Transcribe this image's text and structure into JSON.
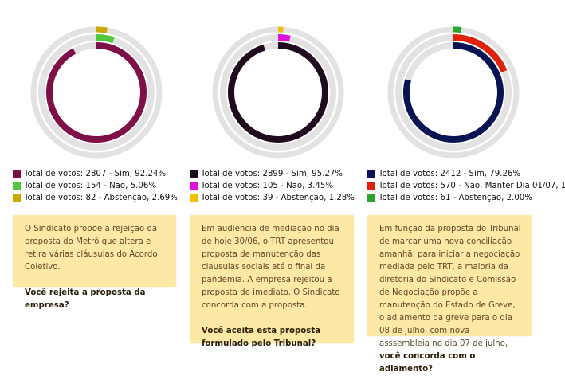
{
  "chart_data": [
    {
      "type": "radial-bar",
      "series": [
        {
          "label": "Total de votos: 2807 - Sim, 92.24%",
          "votes": 2807,
          "percent": 92.24,
          "color": "#7e1048"
        },
        {
          "label": "Total de votos: 154 - Não, 5.06%",
          "votes": 154,
          "percent": 5.06,
          "color": "#4ec93c"
        },
        {
          "label": "Total de votos: 82 - Abstenção, 2.69%",
          "votes": 82,
          "percent": 2.69,
          "color": "#c9a800"
        }
      ],
      "track_color": "#e2e2e2",
      "card": {
        "text": "O Sindicato propõe a rejeição da proposta do Metrô que altera e retira várias cláusulas do Acordo Coletivo.",
        "question": "Você rejeita a proposta da empresa?"
      }
    },
    {
      "type": "radial-bar",
      "series": [
        {
          "label": "Total de votos: 2899 - Sim, 95.27%",
          "votes": 2899,
          "percent": 95.27,
          "color": "#200a1e"
        },
        {
          "label": "Total de votos: 105 - Não, 3.45%",
          "votes": 105,
          "percent": 3.45,
          "color": "#e010df"
        },
        {
          "label": "Total de votos: 39 - Abstenção, 1.28%",
          "votes": 39,
          "percent": 1.28,
          "color": "#f0c000"
        }
      ],
      "track_color": "#e2e2e2",
      "card": {
        "text": "Em audiencia de mediação no dia de hoje 30/06, o TRT apresentou proposta de manutenção das clausulas sociais até o final da pandemia. A empresa rejeitou a proposta de imediato. O Sindicato concorda com a proposta.",
        "question": "Você aceita esta proposta formulado pelo Tribunal?"
      }
    },
    {
      "type": "radial-bar",
      "series": [
        {
          "label": "Total de votos: 2412 - Sim, 79.26%",
          "votes": 2412,
          "percent": 79.26,
          "color": "#0b1452"
        },
        {
          "label": "Total de votos: 570 - Não, Manter Dia 01/07, 18.73%",
          "votes": 570,
          "percent": 18.73,
          "color": "#e0220c"
        },
        {
          "label": "Total de votos: 61 - Abstenção, 2.00%",
          "votes": 61,
          "percent": 2.0,
          "color": "#2aa52a"
        }
      ],
      "track_color": "#e2e2e2",
      "card": {
        "text": "Em função da proposta do Tribunal de marcar uma nova conciliação amanhã, para iniciar a negociação mediada pelo TRT, a maioria da diretoria do Sindicato e Comissão de Negociação propõe a manutenção do Estado de Greve, o adiamento da greve para o dia 08 de julho, com nova asssembleia no dia 07 de julho,",
        "question": "você concorda com o adiamento?"
      }
    }
  ]
}
